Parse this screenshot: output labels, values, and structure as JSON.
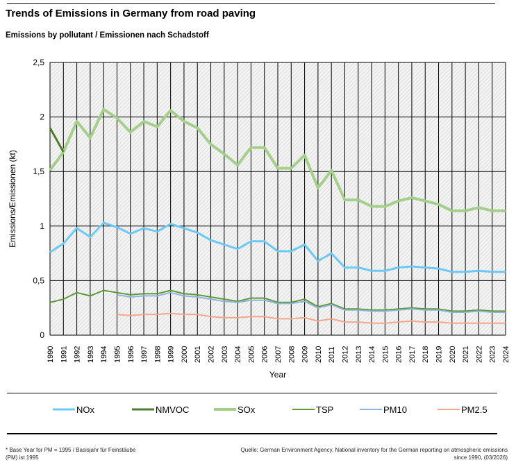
{
  "header": {
    "title": "Trends of Emissions in Germany from road paving",
    "subtitle": "Emissions by pollutant / Emissionen nach Schadstoff"
  },
  "footer": {
    "note": "* Base Year for PM = 1995 / Basisjahr für Feinstäube (PM) ist 1995",
    "source_line1": "Quelle: German Environment Agency, National inventory for the German reporting on atmospheric emissions",
    "source_line2": "since 1990, (03/2026)"
  },
  "chart_data": {
    "type": "line",
    "title": "Trends of Emissions in Germany from road paving",
    "subtitle": "Emissions by pollutant / Emissionen nach Schadstoff",
    "xlabel": "Year",
    "ylabel": "Emissions/Emissionen (kt)",
    "ylim": [
      0,
      2.5
    ],
    "yticks": [
      "0",
      "0,5",
      "1",
      "1,5",
      "2",
      "2,5"
    ],
    "grid": true,
    "legend": "bottom",
    "x": [
      1990,
      1991,
      1992,
      1993,
      1994,
      1995,
      1996,
      1997,
      1998,
      1999,
      2000,
      2001,
      2002,
      2003,
      2004,
      2005,
      2006,
      2007,
      2008,
      2009,
      2010,
      2011,
      2012,
      2013,
      2014,
      2015,
      2016,
      2017,
      2018,
      2019,
      2020,
      2021,
      2022,
      2023,
      2024
    ],
    "series": [
      {
        "name": "NOx",
        "color": "#6cc8f5",
        "values": [
          0.76,
          0.84,
          0.98,
          0.9,
          1.03,
          0.99,
          0.93,
          0.98,
          0.95,
          1.02,
          0.98,
          0.94,
          0.87,
          0.83,
          0.79,
          0.86,
          0.86,
          0.77,
          0.77,
          0.83,
          0.68,
          0.75,
          0.62,
          0.62,
          0.59,
          0.59,
          0.62,
          0.63,
          0.62,
          0.61,
          0.58,
          0.58,
          0.59,
          0.58,
          0.58
        ]
      },
      {
        "name": "NMVOC",
        "color": "#4e7a2a",
        "values": [
          1.9,
          1.68,
          null,
          null,
          null,
          null,
          null,
          null,
          null,
          null,
          null,
          null,
          null,
          null,
          null,
          null,
          null,
          null,
          null,
          null,
          null,
          null,
          null,
          null,
          null,
          null,
          null,
          null,
          null,
          null,
          null,
          null,
          null,
          null,
          null
        ]
      },
      {
        "name": "SOx",
        "color": "#a3cf8a",
        "values": [
          1.51,
          1.68,
          1.96,
          1.81,
          2.07,
          1.99,
          1.86,
          1.96,
          1.91,
          2.06,
          1.96,
          1.9,
          1.75,
          1.66,
          1.56,
          1.72,
          1.72,
          1.53,
          1.53,
          1.65,
          1.35,
          1.51,
          1.24,
          1.24,
          1.18,
          1.18,
          1.23,
          1.26,
          1.23,
          1.2,
          1.14,
          1.14,
          1.17,
          1.14,
          1.14
        ]
      },
      {
        "name": "TSP",
        "color": "#5b9a35",
        "values": [
          0.3,
          0.33,
          0.39,
          0.36,
          0.41,
          0.39,
          0.37,
          0.38,
          0.38,
          0.41,
          0.38,
          0.37,
          0.35,
          0.33,
          0.31,
          0.34,
          0.34,
          0.3,
          0.3,
          0.33,
          0.26,
          0.29,
          0.24,
          0.24,
          0.23,
          0.23,
          0.24,
          0.25,
          0.24,
          0.24,
          0.22,
          0.22,
          0.23,
          0.22,
          0.22
        ]
      },
      {
        "name": "PM10",
        "color": "#8fb3de",
        "values": [
          null,
          null,
          null,
          null,
          null,
          0.37,
          0.35,
          0.36,
          0.36,
          0.39,
          0.36,
          0.35,
          0.33,
          0.31,
          0.3,
          0.32,
          0.32,
          0.29,
          0.29,
          0.31,
          0.25,
          0.28,
          0.23,
          0.23,
          0.22,
          0.22,
          0.23,
          0.24,
          0.23,
          0.23,
          0.21,
          0.21,
          0.22,
          0.21,
          0.21
        ]
      },
      {
        "name": "PM2.5",
        "color": "#f4a58a",
        "values": [
          null,
          null,
          null,
          null,
          null,
          0.19,
          0.18,
          0.19,
          0.19,
          0.2,
          0.19,
          0.19,
          0.17,
          0.16,
          0.16,
          0.17,
          0.17,
          0.15,
          0.15,
          0.16,
          0.13,
          0.15,
          0.12,
          0.12,
          0.11,
          0.11,
          0.12,
          0.13,
          0.12,
          0.12,
          0.11,
          0.11,
          0.11,
          0.11,
          0.11
        ]
      }
    ]
  }
}
